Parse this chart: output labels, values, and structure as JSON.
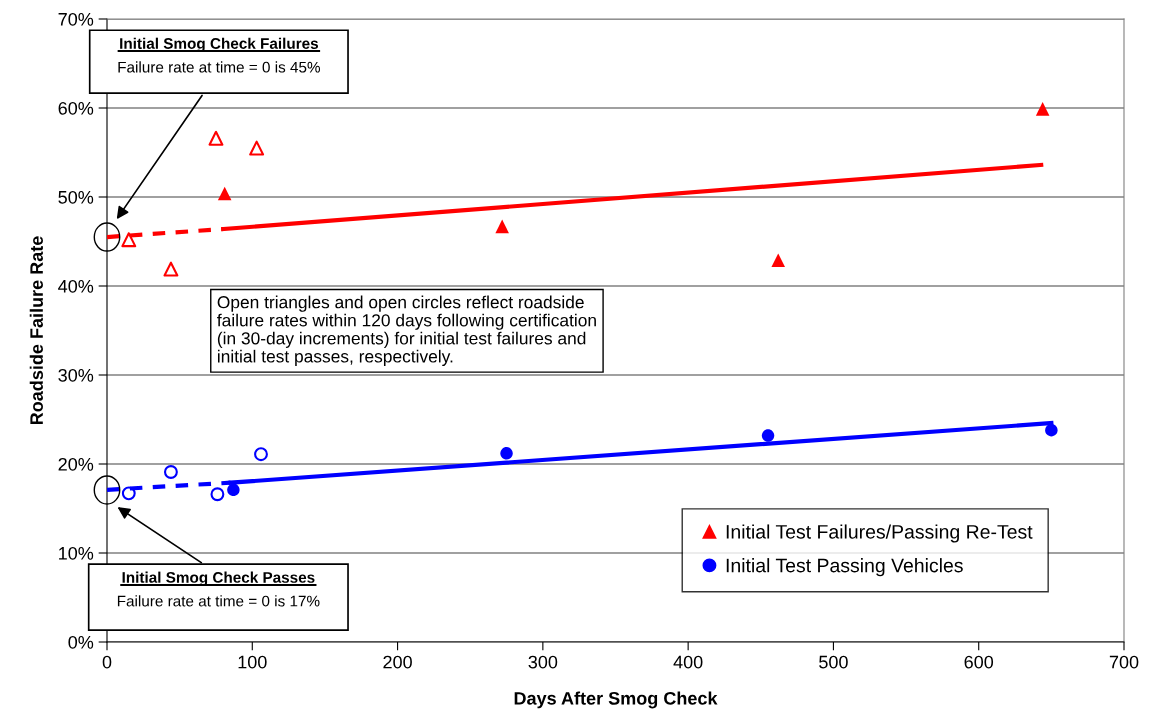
{
  "chart_data": {
    "type": "scatter",
    "xlabel": "Days After Smog Check",
    "ylabel": "Roadside Failure Rate",
    "xlim": [
      0,
      700
    ],
    "xticks": [
      0,
      100,
      200,
      300,
      400,
      500,
      600,
      700
    ],
    "ylim": [
      0,
      70
    ],
    "yticks": [
      {
        "value": 0,
        "label": "0%"
      },
      {
        "value": 10,
        "label": "10%"
      },
      {
        "value": 20,
        "label": "20%"
      },
      {
        "value": 30,
        "label": "30%"
      },
      {
        "value": 40,
        "label": "40%"
      },
      {
        "value": 50,
        "label": "50%"
      },
      {
        "value": 60,
        "label": "60%"
      },
      {
        "value": 70,
        "label": "70%"
      }
    ],
    "grid": "y",
    "legend": "bottom right",
    "series": [
      {
        "name": "Initial Test Failures/Passing Re-Test",
        "color": "#ff0000",
        "marker": "triangle",
        "x": [
          81,
          272,
          462,
          644
        ],
        "values": [
          50.4,
          46.7,
          42.9,
          59.9
        ]
      },
      {
        "name": "Initial Test Passing Vehicles",
        "color": "#0000ff",
        "marker": "circle",
        "x": [
          87,
          275,
          455,
          650
        ],
        "values": [
          17.1,
          21.2,
          23.2,
          23.8
        ]
      },
      {
        "color": "#ff0000",
        "marker": "triangle",
        "x": [
          15,
          44,
          75,
          103
        ],
        "values": [
          45.2,
          41.9,
          56.6,
          55.5
        ]
      },
      {
        "color": "#0000ff",
        "marker": "circle",
        "x": [
          15,
          44,
          76,
          106
        ],
        "values": [
          16.7,
          19.1,
          16.6,
          21.1
        ]
      },
      {
        "type": "line",
        "color": "#ff0000",
        "line_style": "dashed",
        "x": [
          0,
          80
        ],
        "values": [
          45.5,
          46.4
        ]
      },
      {
        "type": "line",
        "color": "#ff0000",
        "line_style": "solid",
        "x": [
          80,
          643
        ],
        "values": [
          46.4,
          53.6
        ]
      },
      {
        "type": "line",
        "color": "#0000ff",
        "line_style": "dashed",
        "x": [
          0,
          85
        ],
        "values": [
          17.1,
          17.9
        ]
      },
      {
        "type": "line",
        "color": "#0000ff",
        "line_style": "solid",
        "x": [
          85,
          650
        ],
        "values": [
          17.9,
          24.6
        ]
      }
    ],
    "annotations": [
      "Initial Smog Check Failures",
      "Failure rate at time = 0 is 45%",
      "Initial Smog Check Passes",
      "Failure rate at time = 0 is 17%",
      "Open triangles and open circles reflect roadside\nfailure rates within 120 days following certification\n(in 30-day increments) for initial test failures and\ninitial test passes, respectively."
    ]
  }
}
